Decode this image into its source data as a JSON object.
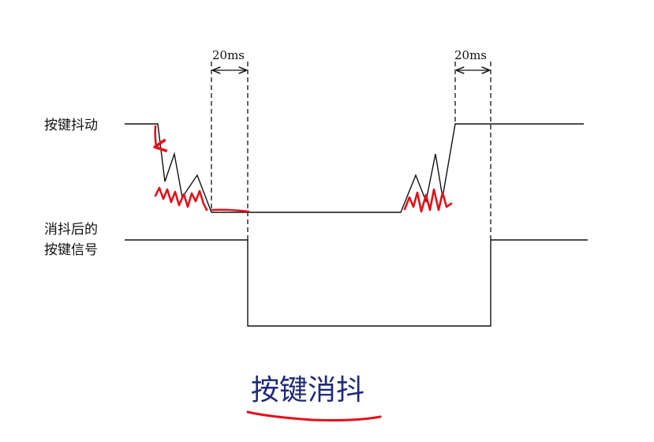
{
  "diagram": {
    "title": "按键消抖",
    "signals": {
      "bounce": {
        "label": "按键抖动"
      },
      "debounced": {
        "label_line1": "消抖后的",
        "label_line2": "按键信号"
      }
    },
    "dimensions": [
      {
        "label": "20ms"
      },
      {
        "label": "20ms"
      }
    ],
    "colors": {
      "line": "#111111",
      "annotation": "#e3121a",
      "title": "#1f2a7a"
    }
  }
}
